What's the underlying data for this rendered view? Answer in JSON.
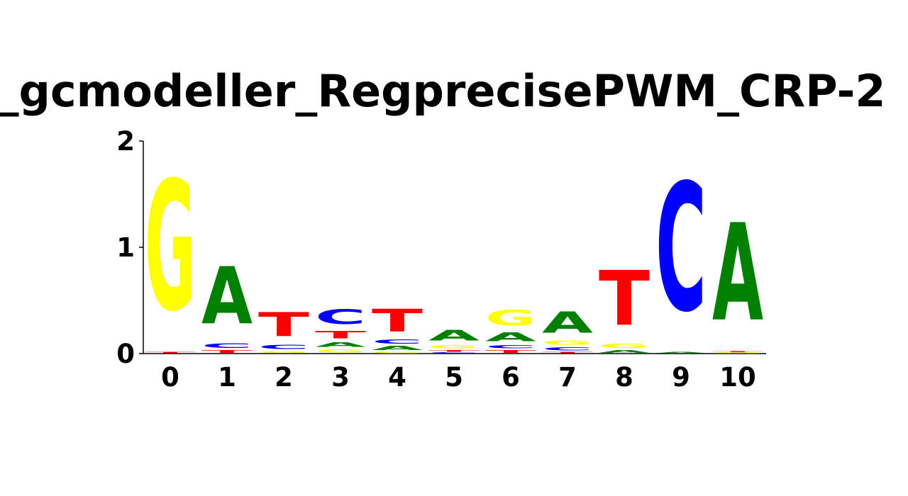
{
  "chart_data": {
    "type": "sequence-logo",
    "title": "_gcmodeller_RegprecisePWM_CRP-2",
    "xlabel": "",
    "ylabel": "",
    "ylim": [
      0,
      2
    ],
    "y_ticks": [
      "0",
      "1",
      "2"
    ],
    "x_ticks": [
      "0",
      "1",
      "2",
      "3",
      "4",
      "5",
      "6",
      "7",
      "8",
      "9",
      "10"
    ],
    "colors": {
      "A": "#008000",
      "C": "#0000ff",
      "G": "#ffff00",
      "T": "#ff0000"
    },
    "positions": [
      {
        "position": "0",
        "stack": [
          {
            "base": "T",
            "bits": 0.02
          },
          {
            "base": "G",
            "bits": 1.96
          }
        ]
      },
      {
        "position": "1",
        "stack": [
          {
            "base": "T",
            "bits": 0.04
          },
          {
            "base": "C",
            "bits": 0.07
          },
          {
            "base": "A",
            "bits": 0.86
          }
        ]
      },
      {
        "position": "2",
        "stack": [
          {
            "base": "G",
            "bits": 0.03
          },
          {
            "base": "C",
            "bits": 0.06
          },
          {
            "base": "T",
            "bits": 0.36
          }
        ]
      },
      {
        "position": "3",
        "stack": [
          {
            "base": "G",
            "bits": 0.05
          },
          {
            "base": "A",
            "bits": 0.07
          },
          {
            "base": "T",
            "bits": 0.11
          },
          {
            "base": "C",
            "bits": 0.22
          }
        ]
      },
      {
        "position": "4",
        "stack": [
          {
            "base": "G",
            "bits": 0.02
          },
          {
            "base": "A",
            "bits": 0.06
          },
          {
            "base": "C",
            "bits": 0.06
          },
          {
            "base": "T",
            "bits": 0.34
          }
        ]
      },
      {
        "position": "5",
        "stack": [
          {
            "base": "C",
            "bits": 0.01
          },
          {
            "base": "T",
            "bits": 0.03
          },
          {
            "base": "G",
            "bits": 0.05
          },
          {
            "base": "A",
            "bits": 0.16
          }
        ]
      },
      {
        "position": "6",
        "stack": [
          {
            "base": "T",
            "bits": 0.04
          },
          {
            "base": "C",
            "bits": 0.05
          },
          {
            "base": "A",
            "bits": 0.13
          },
          {
            "base": "G",
            "bits": 0.23
          }
        ]
      },
      {
        "position": "7",
        "stack": [
          {
            "base": "T",
            "bits": 0.02
          },
          {
            "base": "C",
            "bits": 0.05
          },
          {
            "base": "G",
            "bits": 0.06
          },
          {
            "base": "A",
            "bits": 0.32
          }
        ]
      },
      {
        "position": "8",
        "stack": [
          {
            "base": "A",
            "bits": 0.04
          },
          {
            "base": "G",
            "bits": 0.06
          },
          {
            "base": "T",
            "bits": 0.83
          }
        ]
      },
      {
        "position": "9",
        "stack": [
          {
            "base": "A",
            "bits": 0.02
          },
          {
            "base": "C",
            "bits": 1.93
          }
        ]
      },
      {
        "position": "10",
        "stack": [
          {
            "base": "G",
            "bits": 0.01
          },
          {
            "base": "T",
            "bits": 0.01
          },
          {
            "base": "A",
            "bits": 1.47
          }
        ]
      }
    ]
  }
}
